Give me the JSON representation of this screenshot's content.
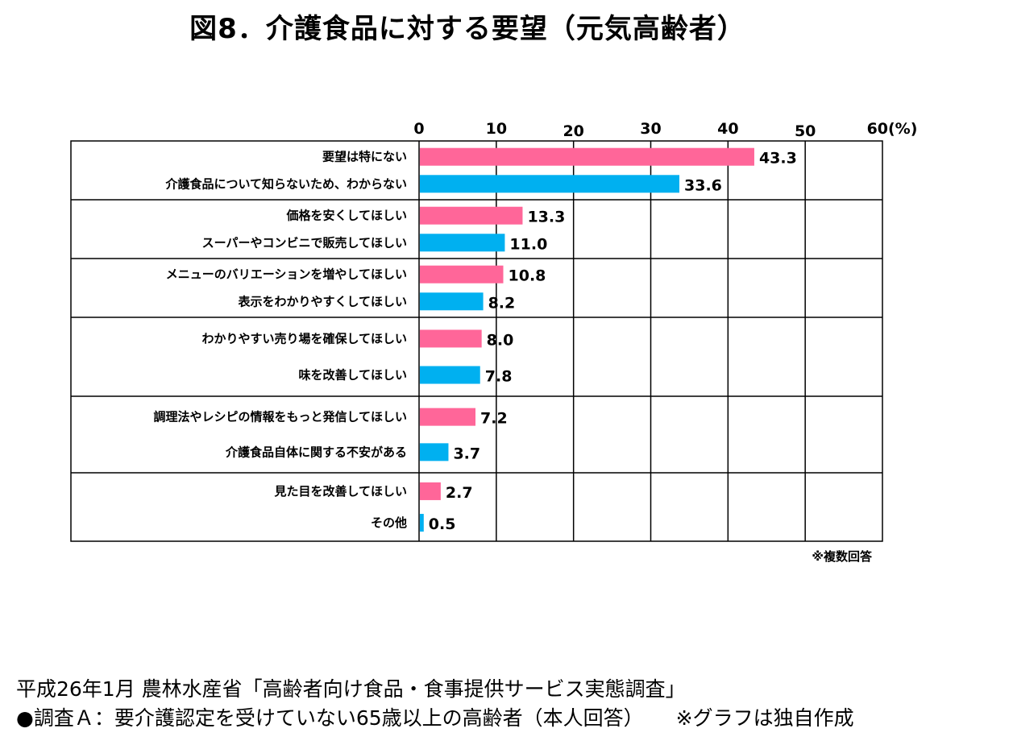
{
  "title": "図8．介護食品に対する要望（元気高齢者）",
  "note": "※複数回答",
  "source": {
    "line1": "平成26年1月 農林水産省「高齢者向け食品・食事提供サービス実態調査」",
    "line2": "●調査Ａ：要介護認定を受けていない65歳以上の高齢者（本人回答）",
    "graph_note": "※グラフは独自作成"
  },
  "colors": {
    "pink": "#ff6699",
    "blue": "#00b0f0",
    "grid": "#000000"
  },
  "chart_data": {
    "type": "bar",
    "orientation": "horizontal",
    "xlim": [
      0,
      60
    ],
    "ticks": [
      "0",
      "10",
      "20",
      "30",
      "40",
      "50",
      "60(%)"
    ],
    "tick_values": [
      0,
      10,
      20,
      30,
      40,
      50,
      60
    ],
    "groups": [
      {
        "items": [
          {
            "label": "要望は特にない",
            "value": 43.3,
            "display": "43.3",
            "color": "pink"
          },
          {
            "label": "介護食品について知らないため、わからない",
            "value": 33.6,
            "display": "33.6",
            "color": "blue"
          }
        ]
      },
      {
        "items": [
          {
            "label": "価格を安くしてほしい",
            "value": 13.3,
            "display": "13.3",
            "color": "pink"
          },
          {
            "label": "スーパーやコンビニで販売してほしい",
            "value": 11.0,
            "display": "11.0",
            "color": "blue"
          }
        ]
      },
      {
        "items": [
          {
            "label": "メニューのバリエーションを増やしてほしい",
            "value": 10.8,
            "display": "10.8",
            "color": "pink"
          },
          {
            "label": "表示をわかりやすくしてほしい",
            "value": 8.2,
            "display": "8.2",
            "color": "blue"
          }
        ]
      },
      {
        "items": [
          {
            "label": "わかりやすい売り場を確保してほしい",
            "value": 8.0,
            "display": "8.0",
            "color": "pink"
          },
          {
            "label": "味を改善してほしい",
            "value": 7.8,
            "display": "7.8",
            "color": "blue"
          }
        ]
      },
      {
        "items": [
          {
            "label": "調理法やレシピの情報をもっと発信してほしい",
            "value": 7.2,
            "display": "7.2",
            "color": "pink"
          },
          {
            "label": "介護食品自体に関する不安がある",
            "value": 3.7,
            "display": "3.7",
            "color": "blue"
          }
        ]
      },
      {
        "items": [
          {
            "label": "見た目を改善してほしい",
            "value": 2.7,
            "display": "2.7",
            "color": "pink"
          },
          {
            "label": "その他",
            "value": 0.5,
            "display": "0.5",
            "color": "blue"
          }
        ]
      }
    ]
  }
}
